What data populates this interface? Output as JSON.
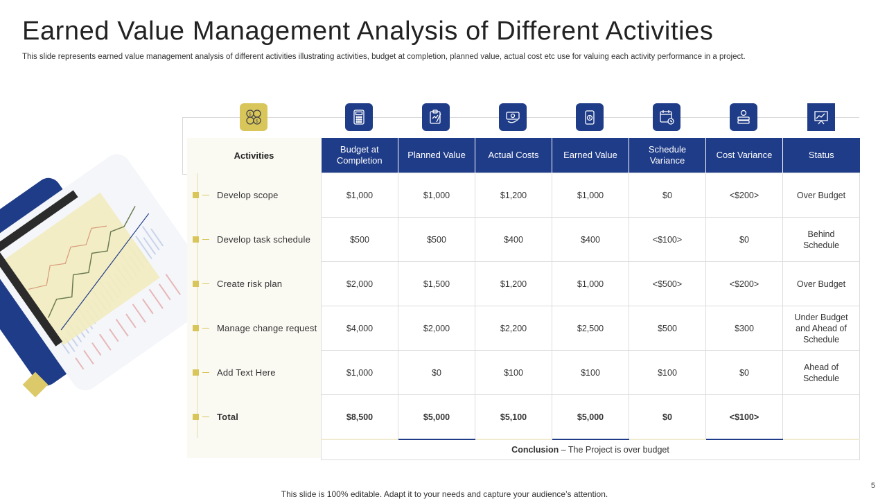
{
  "title": "Earned Value Management Analysis of Different Activities",
  "subtitle": "This slide represents earned value management analysis of different activities illustrating activities, budget at completion, planned value, actual cost etc use for valuing each activity performance in a project.",
  "footer": "This slide is 100% editable. Adapt it to your needs and capture your audience’s attention.",
  "page_number": "5",
  "colors": {
    "primary": "#1f3c88",
    "accent": "#d8c65a",
    "panel": "#faf9f2"
  },
  "icons": [
    "coins-icon",
    "calculator-icon",
    "clipboard-plan-icon",
    "cash-cost-icon",
    "money-bag-icon",
    "calendar-clock-icon",
    "money-stack-icon",
    "chart-board-icon"
  ],
  "activities_header": "Activities",
  "columns": [
    "Budget at Completion",
    "Planned Value",
    "Actual Costs",
    "Earned Value",
    "Schedule Variance",
    "Cost Variance",
    "Status"
  ],
  "rows": [
    {
      "activity": "Develop  scope",
      "values": [
        "$1,000",
        "$1,000",
        "$1,200",
        "$1,000",
        "$0",
        "<$200>",
        "Over  Budget"
      ]
    },
    {
      "activity": "Develop  task schedule",
      "values": [
        "$500",
        "$500",
        "$400",
        "$400",
        "<$100>",
        "$0",
        "Behind Schedule"
      ]
    },
    {
      "activity": "Create  risk plan",
      "values": [
        "$2,000",
        "$1,500",
        "$1,200",
        "$1,000",
        "<$500>",
        "<$200>",
        "Over  Budget"
      ]
    },
    {
      "activity": "Manage  change request",
      "values": [
        "$4,000",
        "$2,000",
        "$2,200",
        "$2,500",
        "$500",
        "$300",
        "Under Budget and Ahead of Schedule"
      ]
    },
    {
      "activity": "Add Text Here",
      "values": [
        "$1,000",
        "$0",
        "$100",
        "$100",
        "$100",
        "$0",
        "Ahead of Schedule"
      ]
    }
  ],
  "total": {
    "activity": "Total",
    "values": [
      "$8,500",
      "$5,000",
      "$5,100",
      "$5,000",
      "$0",
      "<$100>",
      ""
    ]
  },
  "conclusion": {
    "label": "Conclusion",
    "text": " – The  Project is over  budget"
  }
}
